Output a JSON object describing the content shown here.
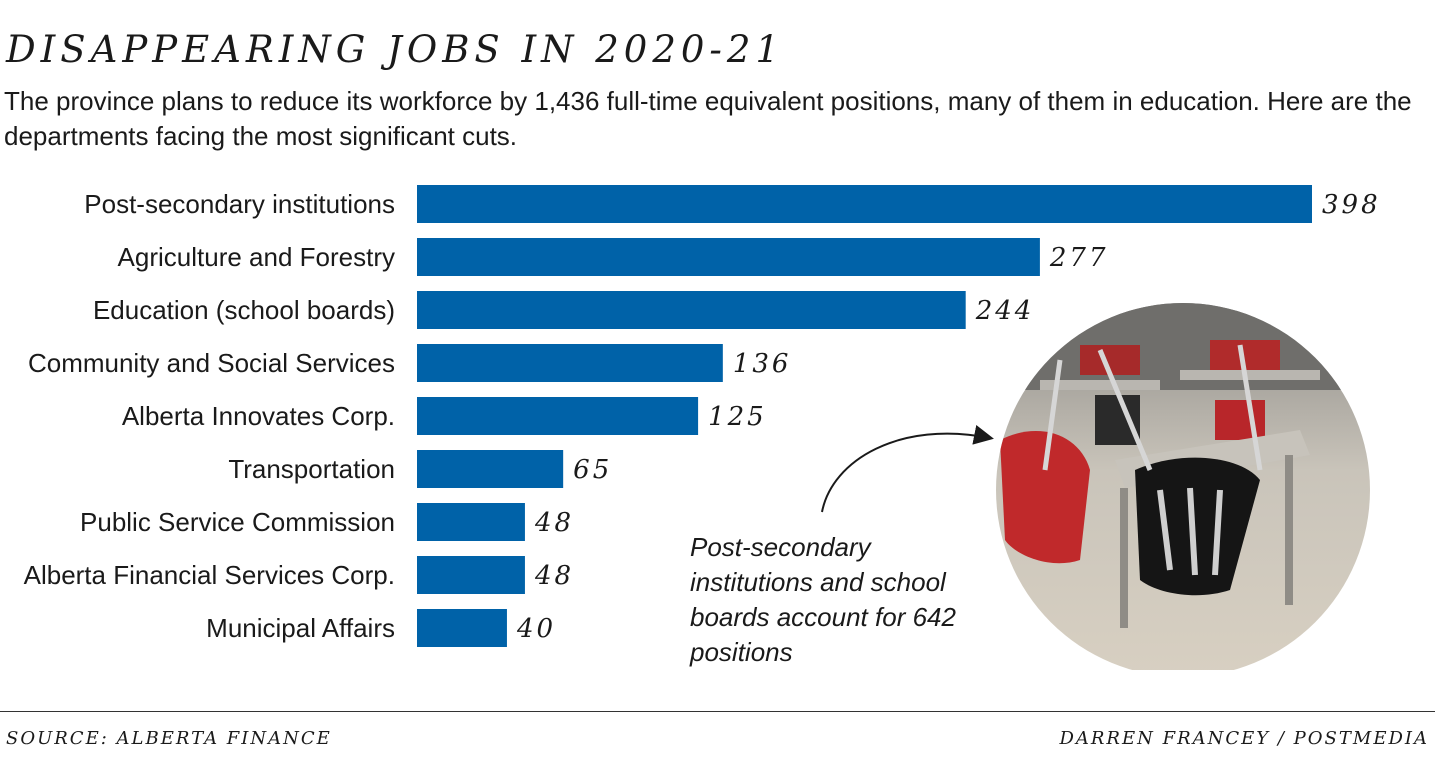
{
  "header": {
    "title": "DISAPPEARING JOBS IN 2020-21",
    "subtitle": "The province plans to reduce its workforce by 1,436 full-time equivalent positions, many of them in education. Here are the departments facing the most significant cuts."
  },
  "annotation": "Post-secondary institutions and school boards account for 642 positions",
  "footer": {
    "source": "SOURCE: ALBERTA FINANCE",
    "credit": "DARREN FRANCEY / POSTMEDIA"
  },
  "colors": {
    "bar": "#0062a8",
    "text": "#1a1a1a"
  },
  "chart_data": {
    "type": "bar",
    "orientation": "horizontal",
    "categories": [
      "Post-secondary institutions",
      "Agriculture and Forestry",
      "Education (school boards)",
      "Community and Social Services",
      "Alberta Innovates Corp.",
      "Transportation",
      "Public Service Commission",
      "Alberta Financial Services Corp.",
      "Municipal Affairs"
    ],
    "values": [
      398,
      277,
      244,
      136,
      125,
      65,
      48,
      48,
      40
    ],
    "xlim": [
      0,
      398
    ],
    "grid": false,
    "legend": "none"
  }
}
